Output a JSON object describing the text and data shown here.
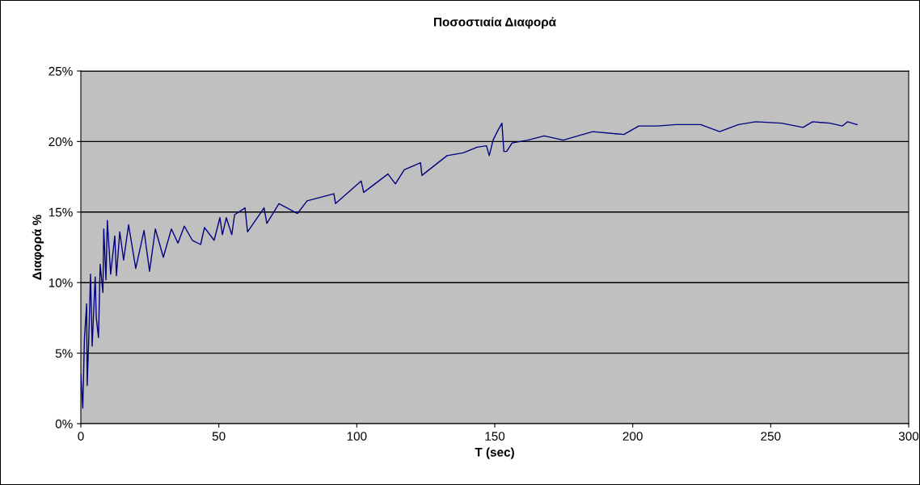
{
  "chart_data": {
    "type": "line",
    "title": "Ποσοστιαία Διαφορά",
    "xlabel": "T (sec)",
    "ylabel": "Διαφορά %",
    "x": [
      0,
      0.7,
      1.3,
      2.1,
      2.3,
      2.9,
      3.5,
      4.1,
      5.2,
      5.6,
      6.4,
      7.0,
      8.0,
      8.3,
      9.1,
      9.6,
      10.8,
      12.3,
      12.9,
      14.1,
      15.5,
      17.3,
      19.9,
      22.9,
      24.9,
      27.0,
      29.9,
      32.8,
      35.2,
      37.5,
      40.4,
      43.4,
      44.8,
      48.3,
      50.4,
      51.3,
      52.7,
      54.7,
      55.7,
      59.5,
      60.4,
      66.4,
      67.4,
      71.8,
      78.5,
      82.0,
      91.7,
      92.3,
      101.6,
      102.5,
      111.3,
      114.0,
      117.2,
      123.1,
      123.6,
      132.7,
      138.6,
      143.6,
      147.0,
      148.0,
      149.4,
      150.9,
      152.6,
      153.3,
      154.3,
      156.3,
      162.0,
      167.9,
      174.8,
      185.5,
      196.8,
      202.2,
      208.9,
      215.8,
      224.6,
      231.5,
      238.3,
      244.6,
      253.9,
      261.7,
      265.2,
      271.5,
      275.9,
      277.8,
      281.3
    ],
    "series": [
      {
        "color": "#000080",
        "values": [
          3.5,
          1.1,
          6.0,
          8.5,
          2.7,
          6.2,
          10.6,
          5.5,
          10.4,
          7.5,
          6.1,
          11.3,
          9.3,
          13.8,
          10.2,
          14.4,
          10.6,
          13.3,
          10.5,
          13.6,
          11.6,
          14.1,
          11.0,
          13.7,
          10.8,
          13.8,
          11.8,
          13.8,
          12.8,
          14.0,
          13.0,
          12.7,
          13.9,
          13.0,
          14.6,
          13.4,
          14.6,
          13.4,
          14.8,
          15.3,
          13.6,
          15.3,
          14.2,
          15.6,
          14.9,
          15.8,
          16.3,
          15.6,
          17.2,
          16.4,
          17.7,
          17.0,
          18.0,
          18.5,
          17.6,
          19.0,
          19.2,
          19.6,
          19.7,
          19.0,
          20.1,
          20.7,
          21.3,
          19.3,
          19.3,
          19.9,
          20.1,
          20.4,
          20.1,
          20.7,
          20.5,
          21.1,
          21.1,
          21.2,
          21.2,
          20.7,
          21.2,
          21.4,
          21.3,
          21.0,
          21.4,
          21.3,
          21.1,
          21.4,
          21.2
        ]
      }
    ],
    "xlim": [
      0,
      300
    ],
    "xticks": [
      0,
      50,
      100,
      150,
      200,
      250,
      300
    ],
    "ylim": [
      0,
      25
    ],
    "yticks": [
      {
        "value": 0,
        "label": "0%"
      },
      {
        "value": 5,
        "label": "5%"
      },
      {
        "value": 10,
        "label": "10%"
      },
      {
        "value": 15,
        "label": "15%"
      },
      {
        "value": 20,
        "label": "20%"
      },
      {
        "value": 25,
        "label": "25%"
      }
    ],
    "grid": "y"
  }
}
